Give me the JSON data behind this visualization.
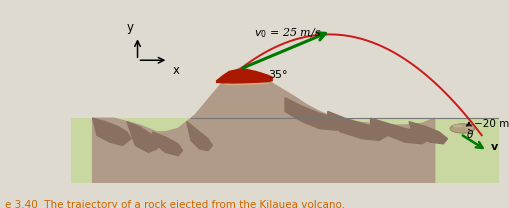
{
  "bg_color": "#dedad0",
  "panel_bg": "#ffffff",
  "panel_color": "#f8f5ee",
  "caption": "e 3.40  The trajectory of a rock ejected from the Kilauea volcano.",
  "caption_color": "#cc6600",
  "v0_label": "$v_0$ = 25 m/s",
  "angle_label": "35°",
  "dist_label": "−20 m",
  "theta_label": "θ",
  "v_label": "v",
  "axis_label_x": "x",
  "axis_label_y": "y",
  "volcano_body_color": "#b09a88",
  "volcano_dark_color": "#8a7060",
  "lava_color": "#aa1800",
  "lava_light": "#c84020",
  "ground_color": "#c8d8a0",
  "ground_color2": "#d8e8b0",
  "trajectory_color": "#cc1818",
  "arrow_green": "#007700",
  "rock_color": "#b0a080",
  "rock_dark": "#907858"
}
